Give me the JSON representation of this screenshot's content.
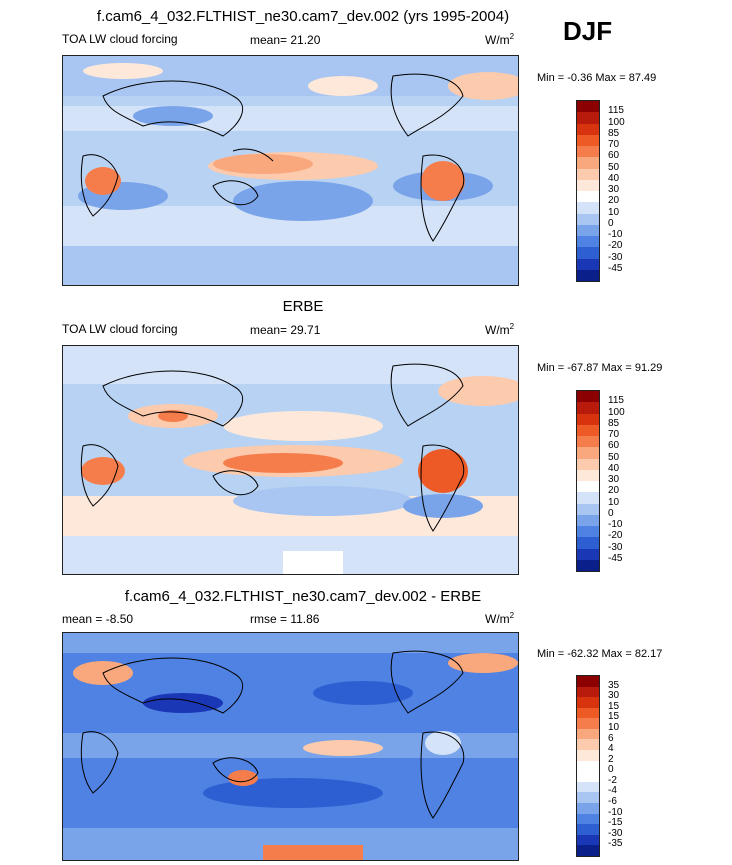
{
  "season": "DJF",
  "panels": [
    {
      "id": "model",
      "header": "f.cam6_4_032.FLTHIST_ne30.cam7_dev.002 (yrs 1995-2004)",
      "left_label": "TOA LW cloud forcing",
      "center_label": "mean=  21.20",
      "units": "W/m",
      "units_sup": "2",
      "minmax": "Min =  -0.36 Max =  87.49",
      "colorbar": {
        "labels": [
          "115",
          "100",
          "85",
          "70",
          "60",
          "50",
          "40",
          "30",
          "20",
          "10",
          "0",
          "-10",
          "-20",
          "-30",
          "-45"
        ],
        "colors": [
          "#8b0000",
          "#b81a0b",
          "#d8330f",
          "#ee5a25",
          "#f57d4b",
          "#f9a77c",
          "#fccaac",
          "#fde8da",
          "#ffffff",
          "#d4e3f8",
          "#a8c6f1",
          "#7aa4ea",
          "#4f82e2",
          "#2d5fd2",
          "#1a38b6",
          "#0b1f8a"
        ]
      }
    },
    {
      "id": "obs",
      "header": "ERBE",
      "left_label": "TOA LW cloud forcing",
      "center_label": "mean=  29.71",
      "units": "W/m",
      "units_sup": "2",
      "minmax": "Min = -67.87 Max =  91.29",
      "colorbar": {
        "labels": [
          "115",
          "100",
          "85",
          "70",
          "60",
          "50",
          "40",
          "30",
          "20",
          "10",
          "0",
          "-10",
          "-20",
          "-30",
          "-45"
        ],
        "colors": [
          "#8b0000",
          "#b81a0b",
          "#d8330f",
          "#ee5a25",
          "#f57d4b",
          "#f9a77c",
          "#fccaac",
          "#fde8da",
          "#ffffff",
          "#d4e3f8",
          "#a8c6f1",
          "#7aa4ea",
          "#4f82e2",
          "#2d5fd2",
          "#1a38b6",
          "#0b1f8a"
        ]
      }
    },
    {
      "id": "diff",
      "header": "f.cam6_4_032.FLTHIST_ne30.cam7_dev.002 - ERBE",
      "left_label": "mean =  -8.50",
      "center_label": "rmse =  11.86",
      "units": "W/m",
      "units_sup": "2",
      "minmax": "Min = -62.32 Max =  82.17",
      "colorbar": {
        "labels": [
          "35",
          "30",
          "15",
          "15",
          "10",
          "6",
          "4",
          "2",
          "0",
          "-2",
          "-4",
          "-6",
          "-10",
          "-15",
          "-30",
          "-35"
        ],
        "colors": [
          "#8b0000",
          "#b81a0b",
          "#d8330f",
          "#ee5a25",
          "#f57d4b",
          "#f9a77c",
          "#fccaac",
          "#fde8da",
          "#ffffff",
          "#ffffff",
          "#d4e3f8",
          "#a8c6f1",
          "#7aa4ea",
          "#4f82e2",
          "#2d5fd2",
          "#1a38b6",
          "#0b1f8a"
        ]
      }
    }
  ]
}
